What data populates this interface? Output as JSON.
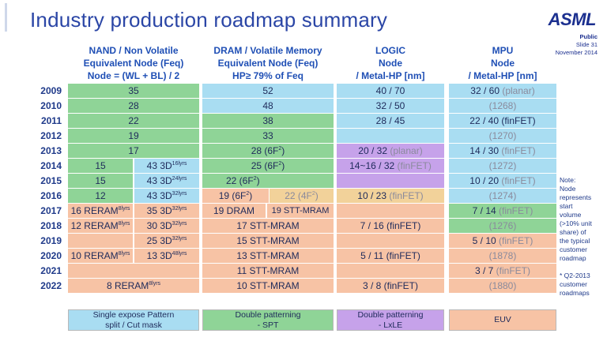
{
  "title": "Industry production roadmap summary",
  "logo": "ASML",
  "meta": {
    "public": "Public",
    "slide": "Slide 31",
    "date": "November 2014"
  },
  "headers": {
    "nand": [
      "NAND / Non Volatile",
      "Equivalent Node (Feq)",
      "Node = (WL + BL) / 2"
    ],
    "dram": [
      "DRAM / Volatile Memory",
      "Equivalent Node (Feq)",
      "HP≥ 79% of Feq"
    ],
    "logic": [
      "LOGIC",
      "Node",
      "/ Metal-HP [nm]"
    ],
    "mpu": [
      "MPU",
      "Node",
      "/ Metal-HP [nm]"
    ]
  },
  "years": [
    "2009",
    "2010",
    "2011",
    "2012",
    "2013",
    "2014",
    "2015",
    "2016",
    "2017",
    "2018",
    "2019",
    "2020",
    "2021",
    "2022"
  ],
  "nand": {
    "r2009": "35",
    "r2010": "28",
    "r2011": "22",
    "r2012": "19",
    "r2013": "17",
    "r2014a": "15",
    "r2014b": "43 3D",
    "r2014b_sup": "16lyrs",
    "r2015a": "15",
    "r2015b": "43 3D",
    "r2015b_sup": "24lyrs",
    "r2016a": "12",
    "r2016b": "43 3D",
    "r2016b_sup": "32lyrs",
    "r2017a": "16 RERAM",
    "r2017a_sup": "8lyrs",
    "r2017b": "35 3D",
    "r2017b_sup": "32lyrs",
    "r2018a": "12 RERAM",
    "r2018a_sup": "8lyrs",
    "r2018b": "30 3D",
    "r2018b_sup": "32lyrs",
    "r2019b": "25 3D",
    "r2019b_sup": "32lyrs",
    "r2020a": "10 RERAM",
    "r2020a_sup": "8lyrs",
    "r2020b": "13 3D",
    "r2020b_sup": "48lyrs",
    "r2022": "8 RERAM",
    "r2022_sup": "8lyrs"
  },
  "dram": {
    "r2009": "52",
    "r2010": "48",
    "r2011": "38",
    "r2012": "33",
    "r2013": "28 (6F",
    "r2013_sup": "2",
    "r2013_end": ")",
    "r2014": "25 (6F",
    "r2014_sup": "2",
    "r2014_end": ")",
    "r2015": "22 (6F",
    "r2015_sup": "2",
    "r2015_end": ")",
    "r2016a": "19 (6F",
    "r2016a_sup": "2",
    "r2016a_end": ")",
    "r2016b": "22 (4F",
    "r2016b_sup": "2",
    "r2016b_end": ")",
    "r2017a": "19 DRAM",
    "r2017b": "19 STT-MRAM",
    "r2018": "17 STT-MRAM",
    "r2019": "15 STT-MRAM",
    "r2020": "13 STT-MRAM",
    "r2021": "11 STT-MRAM",
    "r2022": "10 STT-MRAM"
  },
  "logic": {
    "r2009": "40 / 70",
    "r2010": "32 / 50",
    "r2011": "28 / 45",
    "r2013": "20 / 32",
    "r2013_tag": "(planar)",
    "r2014": "14~16 / 32",
    "r2014_tag": "(finFET)",
    "r2016": "10 / 23",
    "r2016_tag": "(finFET)",
    "r2018": "7 /  16",
    "r2018_tag": "(finFET)",
    "r2020": "5 / 11",
    "r2020_tag": "(finFET)",
    "r2022": "3 / 8",
    "r2022_tag": "(finFET)"
  },
  "mpu": {
    "r2009": "32 / 60",
    "r2009_tag": "(planar)",
    "r2010": "(1268)",
    "r2011": "22 / 40",
    "r2011_tag": "(finFET)",
    "r2012": "(1270)",
    "r2013": "14 / 30",
    "r2013_tag": "(finFET)",
    "r2014": "(1272)",
    "r2015": "10 / 20",
    "r2015_tag": "(finFET)",
    "r2016": "(1274)",
    "r2017": "7 / 14",
    "r2017_tag": "(finFET)",
    "r2018": "(1276)",
    "r2019": "5 / 10",
    "r2019_tag": "(finFET)",
    "r2020": "(1878)",
    "r2021": "3 / 7",
    "r2021_tag": "(finFET)",
    "r2022": "(1880)"
  },
  "note": [
    "Note:",
    "Node",
    "represents",
    "start",
    "volume",
    "(>10% unit",
    "share) of",
    "the typical",
    "customer",
    "roadmap",
    "",
    "* Q2-2013",
    "customer",
    "roadmaps"
  ],
  "footer": {
    "nand": [
      "Single expose Pattern",
      "split / Cut mask"
    ],
    "dram": [
      "Double patterning",
      "- SPT"
    ],
    "logic": [
      "Double patterning",
      "- LxLE"
    ],
    "mpu": [
      "EUV"
    ]
  },
  "colors": {
    "green": "#8fd497",
    "blue": "#a9ddf2",
    "purple": "#c6a2ea",
    "orange": "#f7c3a5",
    "title": "#2b46a6"
  }
}
